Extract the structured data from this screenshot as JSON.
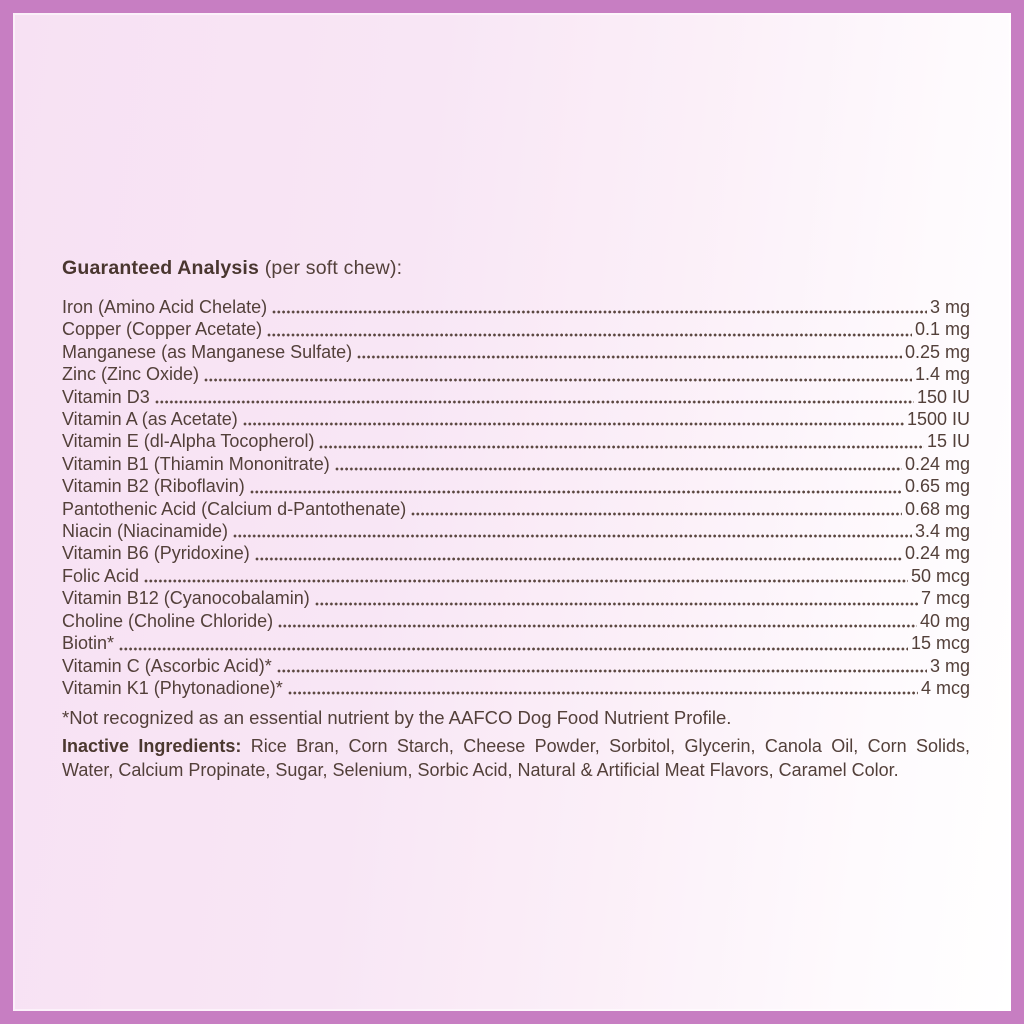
{
  "frame": {
    "border_color": "#c77ec2",
    "background_top_left": "#f7e1f3",
    "background_bottom_right": "#ffffff",
    "text_color": "#53403a"
  },
  "heading": {
    "title": "Guaranteed Analysis",
    "suffix": "(per soft chew):"
  },
  "analysis": {
    "rows": [
      {
        "name": "Iron (Amino Acid Chelate)",
        "value": "3 mg"
      },
      {
        "name": "Copper (Copper Acetate)",
        "value": "0.1 mg"
      },
      {
        "name": "Manganese (as Manganese Sulfate)",
        "value": "0.25 mg"
      },
      {
        "name": "Zinc (Zinc Oxide)",
        "value": "1.4 mg"
      },
      {
        "name": "Vitamin D3",
        "value": "150 IU"
      },
      {
        "name": "Vitamin A (as Acetate)",
        "value": "1500 IU"
      },
      {
        "name": "Vitamin E (dl-Alpha Tocopherol)",
        "value": "15 IU"
      },
      {
        "name": "Vitamin B1 (Thiamin Mononitrate)",
        "value": "0.24 mg"
      },
      {
        "name": "Vitamin B2 (Riboflavin)",
        "value": "0.65 mg"
      },
      {
        "name": "Pantothenic Acid (Calcium d-Pantothenate)",
        "value": "0.68 mg"
      },
      {
        "name": "Niacin (Niacinamide)",
        "value": "3.4 mg"
      },
      {
        "name": "Vitamin B6 (Pyridoxine)",
        "value": "0.24 mg"
      },
      {
        "name": "Folic Acid",
        "value": "50 mcg"
      },
      {
        "name": "Vitamin B12 (Cyanocobalamin)",
        "value": "7 mcg"
      },
      {
        "name": "Choline (Choline Chloride)",
        "value": "40 mg"
      },
      {
        "name": "Biotin*",
        "value": "15 mcg"
      },
      {
        "name": "Vitamin C (Ascorbic Acid)*",
        "value": "3 mg"
      },
      {
        "name": "Vitamin K1 (Phytonadione)*",
        "value": "4 mcg"
      }
    ]
  },
  "footnote": "*Not recognized as an essential nutrient by the AAFCO Dog Food Nutrient Profile.",
  "inactive": {
    "label": "Inactive Ingredients:",
    "line1": "Rice Bran, Corn Starch, Cheese Powder, Sorbitol, Glycerin, Canola Oil, Corn Solids,",
    "line2": "Water, Calcium Propinate, Sugar, Selenium, Sorbic Acid, Natural & Artificial Meat Flavors, Caramel Color."
  }
}
